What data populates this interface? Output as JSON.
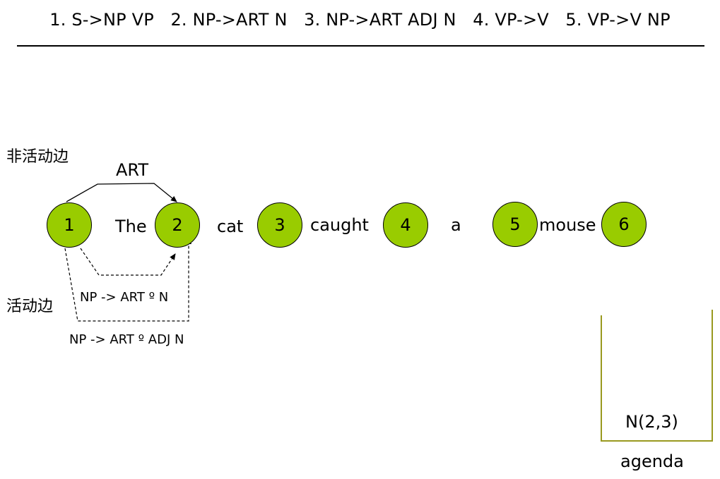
{
  "rules": [
    "1. S->NP VP",
    "2. NP->ART N",
    "3. NP->ART ADJ N",
    "4. VP->V",
    "5. VP->V NP"
  ],
  "labels": {
    "inactive_edges": "非活动边",
    "active_edges": "活动边"
  },
  "nodes": [
    "1",
    "2",
    "3",
    "4",
    "5",
    "6"
  ],
  "words": [
    "The",
    "cat",
    "caught",
    "a",
    "mouse"
  ],
  "edges": {
    "inactive": [
      {
        "label": "ART"
      }
    ],
    "active": [
      {
        "label": "NP -> ART º N"
      },
      {
        "label": "NP -> ART º ADJ N"
      }
    ]
  },
  "agenda": {
    "items": [
      "N(2,3)"
    ],
    "label": "agenda"
  },
  "colors": {
    "node_fill": "#99cc00",
    "agenda_border": "#99991f"
  }
}
